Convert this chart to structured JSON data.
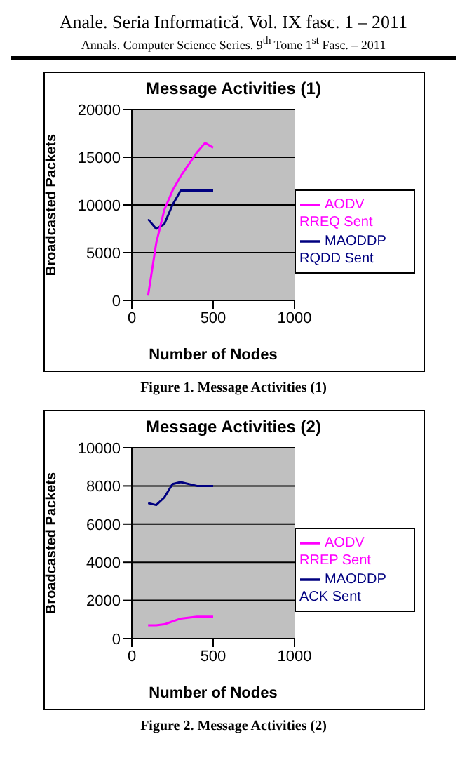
{
  "chart_data": [
    {
      "type": "line",
      "title": "Message Activities (1)",
      "xlabel": "Number of Nodes",
      "ylabel": "Broadcasted Packets",
      "annotations": [
        "Anale. Seria Informatică. Vol. IX fasc. 1 – 2011",
        "Annals. Computer Science Series. 9$^{th}$ Tome 1$^{st}$ Fasc. – 2011",
        "Figure 1. Message Activities (1)"
      ],
      "x": [
        100,
        150,
        200,
        250,
        300,
        400,
        450,
        500
      ],
      "series": [
        {
          "name": "MAODDP RQDD Sent",
          "color": "#000080",
          "values": [
            8500,
            7500,
            8000,
            10000,
            11500,
            11500,
            11500,
            11500
          ]
        },
        {
          "name": "AODV RREQ Sent",
          "color": "#ff00ff",
          "values": [
            500,
            6000,
            9500,
            11500,
            13000,
            15500,
            16500,
            16000
          ]
        }
      ],
      "xlim": [
        0,
        1000
      ],
      "xticks": [
        0,
        500,
        1000
      ],
      "ylim": [
        0,
        20000
      ],
      "yticks": [
        0,
        5000,
        10000,
        15000,
        20000
      ],
      "grid": "y",
      "legend": "right",
      "marker": "none",
      "line_style": "solid"
    },
    {
      "type": "line",
      "title": "Message Activities (2)",
      "xlabel": "Number of Nodes",
      "ylabel": "Broadcasted Packets",
      "annotations": [
        "Figure 2. Message Activities (2)"
      ],
      "x": [
        100,
        150,
        200,
        250,
        300,
        400,
        500
      ],
      "series": [
        {
          "name": "MAODDP ACK Sent",
          "color": "#000080",
          "values": [
            7100,
            7000,
            7400,
            8100,
            8200,
            8000,
            8000
          ]
        },
        {
          "name": "AODV RREP Sent",
          "color": "#ff00ff",
          "values": [
            700,
            700,
            750,
            900,
            1050,
            1150,
            1150
          ]
        }
      ],
      "xlim": [
        0,
        1000
      ],
      "xticks": [
        0,
        500,
        1000
      ],
      "ylim": [
        0,
        10000
      ],
      "yticks": [
        0,
        2000,
        4000,
        6000,
        8000,
        10000
      ],
      "grid": "y",
      "legend": "right",
      "marker": "none",
      "line_style": "solid"
    }
  ]
}
